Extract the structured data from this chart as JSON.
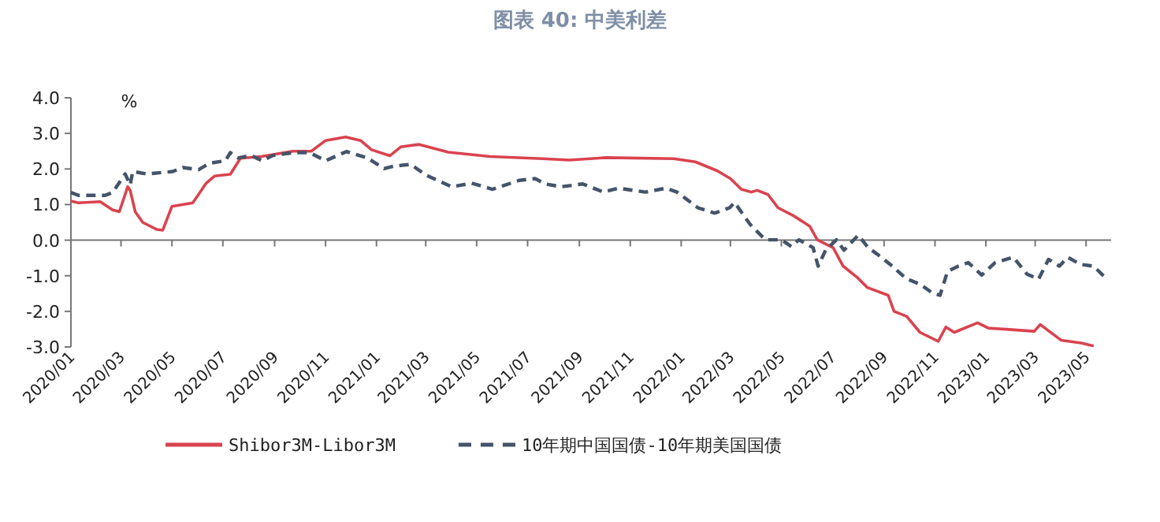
{
  "chart_data": {
    "type": "line",
    "title": "图表 40: 中美利差",
    "ylabel": "%",
    "legend": "bottom",
    "xlim": [
      "2020-01-01",
      "2023-05-31"
    ],
    "xticks": [
      {
        "value": "2020-01",
        "label": "2020/01"
      },
      {
        "value": "2020-03",
        "label": "2020/03"
      },
      {
        "value": "2020-05",
        "label": "2020/05"
      },
      {
        "value": "2020-07",
        "label": "2020/07"
      },
      {
        "value": "2020-09",
        "label": "2020/09"
      },
      {
        "value": "2020-11",
        "label": "2020/11"
      },
      {
        "value": "2021-01",
        "label": "2021/01"
      },
      {
        "value": "2021-03",
        "label": "2021/03"
      },
      {
        "value": "2021-05",
        "label": "2021/05"
      },
      {
        "value": "2021-07",
        "label": "2021/07"
      },
      {
        "value": "2021-09",
        "label": "2021/09"
      },
      {
        "value": "2021-11",
        "label": "2021/11"
      },
      {
        "value": "2022-01",
        "label": "2022/01"
      },
      {
        "value": "2022-03",
        "label": "2022/03"
      },
      {
        "value": "2022-05",
        "label": "2022/05"
      },
      {
        "value": "2022-07",
        "label": "2022/07"
      },
      {
        "value": "2022-09",
        "label": "2022/09"
      },
      {
        "value": "2022-11",
        "label": "2022/11"
      },
      {
        "value": "2023-01",
        "label": "2023/01"
      },
      {
        "value": "2023-03",
        "label": "2023/03"
      },
      {
        "value": "2023-05",
        "label": "2023/05"
      }
    ],
    "ylim": [
      -3,
      4
    ],
    "yticks": [
      {
        "value": 4,
        "label": "4.0"
      },
      {
        "value": 3,
        "label": "3.0"
      },
      {
        "value": 2,
        "label": "2.0"
      },
      {
        "value": 1,
        "label": "1.0"
      },
      {
        "value": 0,
        "label": "0.0"
      },
      {
        "value": -1,
        "label": "-1.0"
      },
      {
        "value": -2,
        "label": "-2.0"
      },
      {
        "value": -3,
        "label": "-3.0"
      }
    ],
    "series": [
      {
        "name": "Shibor3M-Libor3M",
        "color": "#d9434f",
        "line_style": "solid",
        "x": [
          "2020-01-01",
          "2020-01-10",
          "2020-02-05",
          "2020-02-20",
          "2020-02-28",
          "2020-03-09",
          "2020-03-12",
          "2020-03-18",
          "2020-03-27",
          "2020-04-13",
          "2020-04-20",
          "2020-05-01",
          "2020-05-26",
          "2020-06-11",
          "2020-06-21",
          "2020-07-10",
          "2020-07-22",
          "2020-08-16",
          "2020-09-23",
          "2020-10-15",
          "2020-11-01",
          "2020-11-25",
          "2020-12-13",
          "2020-12-26",
          "2021-01-17",
          "2021-01-30",
          "2021-02-21",
          "2021-03-28",
          "2021-05-17",
          "2021-07-19",
          "2021-08-20",
          "2021-10-03",
          "2021-12-23",
          "2022-01-18",
          "2022-02-13",
          "2022-03-01",
          "2022-03-14",
          "2022-03-26",
          "2022-04-02",
          "2022-04-15",
          "2022-04-27",
          "2022-05-16",
          "2022-06-04",
          "2022-06-13",
          "2022-07-02",
          "2022-07-14",
          "2022-07-30",
          "2022-08-12",
          "2022-09-06",
          "2022-09-13",
          "2022-09-28",
          "2022-10-14",
          "2022-11-05",
          "2022-11-14",
          "2022-11-24",
          "2022-12-22",
          "2023-01-04",
          "2023-02-28",
          "2023-03-07",
          "2023-04-01",
          "2023-04-25",
          "2023-05-10"
        ],
        "values": [
          1.1,
          1.05,
          1.08,
          0.85,
          0.8,
          1.5,
          1.4,
          0.8,
          0.5,
          0.3,
          0.28,
          0.95,
          1.05,
          1.6,
          1.8,
          1.85,
          2.3,
          2.35,
          2.5,
          2.5,
          2.8,
          2.9,
          2.8,
          2.54,
          2.37,
          2.62,
          2.69,
          2.47,
          2.35,
          2.29,
          2.25,
          2.32,
          2.29,
          2.2,
          1.95,
          1.73,
          1.43,
          1.35,
          1.4,
          1.28,
          0.91,
          0.68,
          0.39,
          0.01,
          -0.21,
          -0.73,
          -1.03,
          -1.33,
          -1.55,
          -2.0,
          -2.14,
          -2.59,
          -2.84,
          -2.44,
          -2.59,
          -2.32,
          -2.47,
          -2.56,
          -2.37,
          -2.81,
          -2.89,
          -2.97
        ]
      },
      {
        "name": "10年期中国国债-10年期美国国债",
        "color": "#44546a",
        "line_style": "dashed",
        "x": [
          "2020-01-01",
          "2020-01-10",
          "2020-02-11",
          "2020-02-20",
          "2020-03-06",
          "2020-03-12",
          "2020-03-15",
          "2020-04-01",
          "2020-05-02",
          "2020-05-14",
          "2020-06-02",
          "2020-06-15",
          "2020-07-04",
          "2020-07-10",
          "2020-07-19",
          "2020-08-04",
          "2020-08-17",
          "2020-08-30",
          "2020-09-24",
          "2020-10-13",
          "2020-11-01",
          "2020-11-26",
          "2020-12-21",
          "2021-01-10",
          "2021-01-22",
          "2021-02-11",
          "2021-03-01",
          "2021-04-01",
          "2021-04-25",
          "2021-05-20",
          "2021-06-21",
          "2021-07-10",
          "2021-07-22",
          "2021-08-10",
          "2021-09-05",
          "2021-09-30",
          "2021-10-18",
          "2021-11-19",
          "2021-12-14",
          "2021-12-27",
          "2022-01-21",
          "2022-02-10",
          "2022-02-28",
          "2022-03-06",
          "2022-03-24",
          "2022-03-30",
          "2022-04-12",
          "2022-05-01",
          "2022-05-13",
          "2022-05-22",
          "2022-06-08",
          "2022-06-14",
          "2022-06-23",
          "2022-07-06",
          "2022-07-15",
          "2022-08-01",
          "2022-08-13",
          "2022-08-26",
          "2022-09-11",
          "2022-09-27",
          "2022-10-15",
          "2022-10-28",
          "2022-11-07",
          "2022-11-16",
          "2022-11-29",
          "2022-12-11",
          "2022-12-27",
          "2023-01-12",
          "2023-02-03",
          "2023-02-19",
          "2023-03-05",
          "2023-03-17",
          "2023-03-30",
          "2023-04-09",
          "2023-04-24",
          "2023-05-10",
          "2023-05-26"
        ],
        "values": [
          1.34,
          1.26,
          1.26,
          1.34,
          1.86,
          1.55,
          1.93,
          1.86,
          1.93,
          2.04,
          1.98,
          2.16,
          2.23,
          2.46,
          2.31,
          2.38,
          2.23,
          2.38,
          2.46,
          2.46,
          2.23,
          2.49,
          2.31,
          2.01,
          2.08,
          2.13,
          1.83,
          1.5,
          1.6,
          1.43,
          1.68,
          1.73,
          1.58,
          1.5,
          1.58,
          1.35,
          1.46,
          1.35,
          1.46,
          1.35,
          0.91,
          0.76,
          0.91,
          1.06,
          0.46,
          0.31,
          0.01,
          0.01,
          -0.18,
          0.01,
          -0.21,
          -0.73,
          -0.28,
          0.01,
          -0.28,
          0.14,
          -0.21,
          -0.43,
          -0.73,
          -1.07,
          -1.25,
          -1.47,
          -1.55,
          -0.88,
          -0.73,
          -0.63,
          -0.98,
          -0.63,
          -0.48,
          -0.95,
          -1.1,
          -0.54,
          -0.73,
          -0.48,
          -0.68,
          -0.73,
          -1.1
        ]
      }
    ]
  }
}
